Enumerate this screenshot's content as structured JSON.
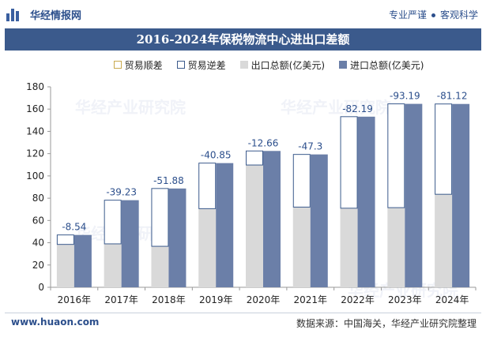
{
  "header": {
    "brand": "华经情报网",
    "tagline_left": "专业严谨",
    "tagline_right": "客观科学"
  },
  "footer": {
    "url": "www.huaon.com",
    "source": "数据来源：中国海关，华经产业研究院整理"
  },
  "watermark": {
    "text": "华经产业研究院",
    "url": "www.huaon.com"
  },
  "colors": {
    "surplus": "#ffffff",
    "deficit": "#ffffff",
    "export": "#d9d9d9",
    "import": "#6b7fa8",
    "outline": "#3b5a8c",
    "title_bg": "#3b5a8c"
  },
  "chart_data": {
    "type": "bar",
    "title": "2016-2024年保税物流中心进出口差额",
    "categories": [
      "2016年",
      "2017年",
      "2018年",
      "2019年",
      "2020年",
      "2021年",
      "2022年",
      "2023年",
      "2024年"
    ],
    "series": [
      {
        "name": "贸易顺差",
        "values": [
          0,
          0,
          0,
          0,
          0,
          0,
          0,
          0,
          0
        ]
      },
      {
        "name": "贸易逆差",
        "values": [
          8.54,
          39.23,
          51.88,
          40.85,
          12.66,
          47.3,
          82.19,
          93.19,
          81.12
        ]
      },
      {
        "name": "出口总额(亿美元)",
        "values": [
          38.5,
          39.0,
          36.8,
          70.6,
          109.8,
          72.0,
          71.0,
          71.5,
          83.5
        ]
      },
      {
        "name": "进口总额(亿美元)",
        "values": [
          47.0,
          78.2,
          88.7,
          111.5,
          122.4,
          119.3,
          153.2,
          164.7,
          164.6
        ]
      }
    ],
    "data_labels": [
      "-8.54",
      "-39.23",
      "-51.88",
      "-40.85",
      "-12.66",
      "-47.3",
      "-82.19",
      "-93.19",
      "-81.12"
    ],
    "ylim": [
      0,
      180
    ],
    "yticks": [
      0,
      20,
      40,
      60,
      80,
      100,
      120,
      140,
      160,
      180
    ],
    "xlabel": "",
    "ylabel": "",
    "grid": false,
    "legend_position": "top"
  }
}
